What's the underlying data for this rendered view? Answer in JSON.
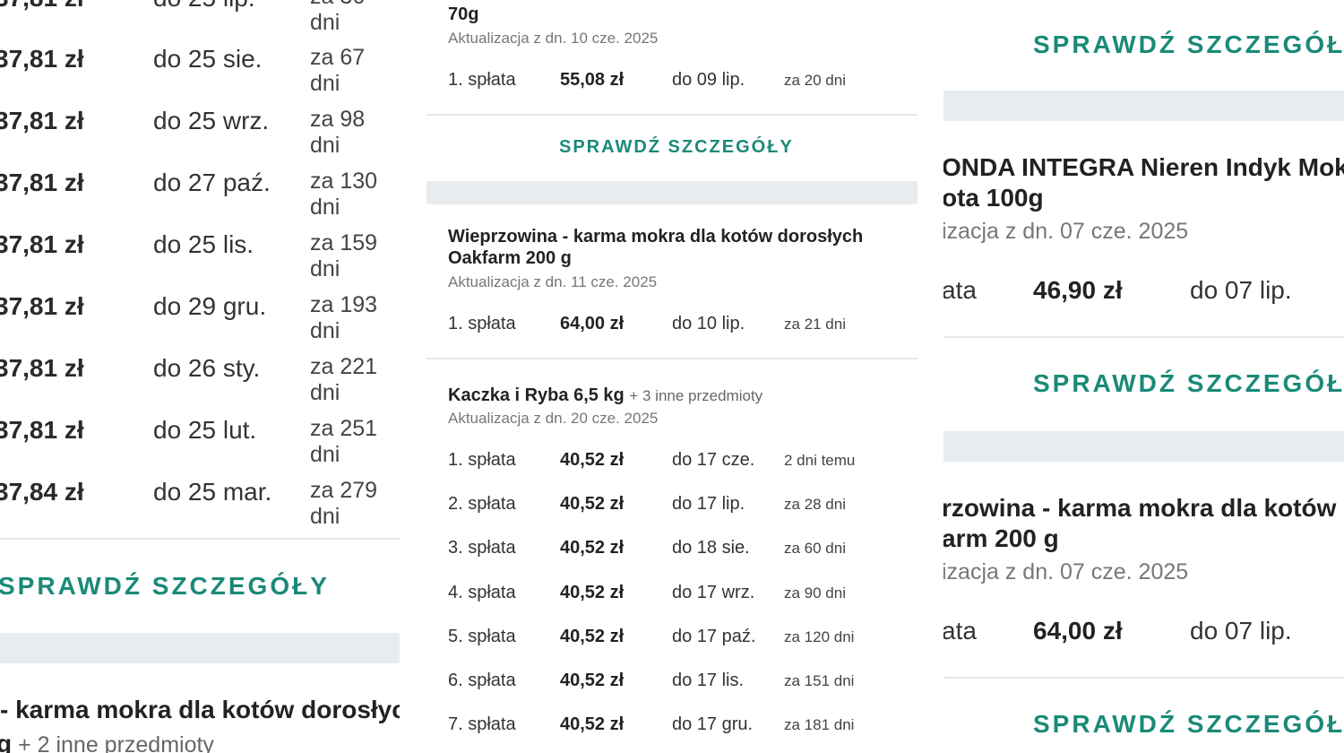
{
  "left": {
    "partial_row": {
      "amount": "37,81 zł",
      "due": "do 25 lip.",
      "in": "za 36 dni"
    },
    "rows": [
      {
        "amount": "37,81 zł",
        "due": "do 25 sie.",
        "in": "za 67 dni"
      },
      {
        "amount": "37,81 zł",
        "due": "do 25 wrz.",
        "in": "za 98 dni"
      },
      {
        "amount": "37,81 zł",
        "due": "do 27 paź.",
        "in": "za 130 dni"
      },
      {
        "amount": "37,81 zł",
        "due": "do 25 lis.",
        "in": "za 159 dni"
      },
      {
        "amount": "37,81 zł",
        "due": "do 29 gru.",
        "in": "za 193 dni"
      },
      {
        "amount": "37,81 zł",
        "due": "do 26 sty.",
        "in": "za 221 dni"
      },
      {
        "amount": "37,81 zł",
        "due": "do 25 lut.",
        "in": "za 251 dni"
      },
      {
        "amount": "37,84 zł",
        "due": "do 25 mar.",
        "in": "za 279 dni"
      }
    ],
    "details_link": "SPRAWDŹ SZCZEGÓŁY",
    "next_title": "- karma mokra dla kotów dorosłych",
    "next_sub_start": "g",
    "next_more": "+ 2 inne przedmioty"
  },
  "middle": {
    "card1": {
      "title_tail": "70g",
      "updated": "Aktualizacja z dn. 10 cze. 2025",
      "row": {
        "no": "1. spłata",
        "amount": "55,08 zł",
        "due": "do 09 lip.",
        "in": "za 20 dni"
      },
      "details_link": "SPRAWDŹ SZCZEGÓŁY"
    },
    "card2": {
      "title_line1": "Wieprzowina - karma mokra dla kotów dorosłych",
      "title_line2": "Oakfarm 200 g",
      "updated": "Aktualizacja z dn. 11 cze. 2025",
      "row": {
        "no": "1. spłata",
        "amount": "64,00 zł",
        "due": "do 10 lip.",
        "in": "za 21 dni"
      }
    },
    "card3": {
      "title": "Kaczka i Ryba 6,5 kg",
      "more": "+ 3 inne przedmioty",
      "updated": "Aktualizacja z dn. 20 cze. 2025",
      "rows": [
        {
          "no": "1. spłata",
          "amount": "40,52 zł",
          "due": "do 17 cze.",
          "in": "2 dni temu"
        },
        {
          "no": "2. spłata",
          "amount": "40,52 zł",
          "due": "do 17 lip.",
          "in": "za 28 dni"
        },
        {
          "no": "3. spłata",
          "amount": "40,52 zł",
          "due": "do 18 sie.",
          "in": "za 60 dni"
        },
        {
          "no": "4. spłata",
          "amount": "40,52 zł",
          "due": "do 17 wrz.",
          "in": "za 90 dni"
        },
        {
          "no": "5. spłata",
          "amount": "40,52 zł",
          "due": "do 17 paź.",
          "in": "za 120 dni"
        },
        {
          "no": "6. spłata",
          "amount": "40,52 zł",
          "due": "do 17 lis.",
          "in": "za 151 dni"
        },
        {
          "no": "7. spłata",
          "amount": "40,52 zł",
          "due": "do 17 gru.",
          "in": "za 181 dni"
        }
      ]
    }
  },
  "right": {
    "details_link_1": "SPRAWDŹ SZCZEGÓŁY",
    "card1": {
      "title_line1": "ONDA INTEGRA Nieren Indyk Mok",
      "title_line2": "ota 100g",
      "updated": "izacja z dn. 07 cze. 2025",
      "row_label": "ata",
      "amount": "46,90 zł",
      "due": "do 07 lip."
    },
    "details_link_2": "SPRAWDŹ SZCZEGÓŁY",
    "card2": {
      "title_line1": "rzowina - karma mokra dla kotów d",
      "title_line2": "arm 200 g",
      "updated": "izacja z dn. 07 cze. 2025",
      "row_label": "ata",
      "amount": "64,00 zł",
      "due": "do 07 lip."
    },
    "details_link_3": "SPRAWDŹ SZCZEGÓŁY"
  },
  "colors": {
    "accent": "#1a8a78",
    "band": "#e9ecef",
    "divider": "#e4e7eb"
  }
}
